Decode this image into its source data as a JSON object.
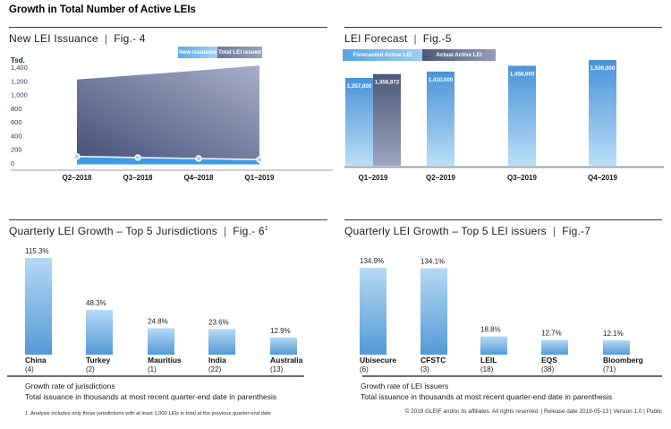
{
  "header": {
    "title": "Growth in Total Number of Active LEIs"
  },
  "ui": {
    "divider": "|"
  },
  "colors": {
    "bright_blue": "#3E9BE6",
    "bar_blue_top": "#4A93D9",
    "bar_blue_bottom": "#B9DDF6",
    "bar_light_top": "#B5D9F4",
    "bar_light_bottom": "#539AD7",
    "dark_navy_top": "#4D5878",
    "dark_navy_bottom": "#9CA5C0",
    "area_dark": "#46517B",
    "area_light": "#A7AEC7"
  },
  "chart_data": [
    {
      "id": "fig4",
      "type": "area",
      "title": "New LEI Issuance",
      "figure": "Fig.- 4",
      "ylabel": "Tsd.",
      "categories": [
        "Q2–2018",
        "Q3–2018",
        "Q4–2018",
        "Q1–2019"
      ],
      "series": [
        {
          "name": "New issuance",
          "values": [
            95,
            80,
            65,
            50
          ]
        },
        {
          "name": "Total LEI issued",
          "values": [
            1220,
            1285,
            1350,
            1425
          ]
        }
      ],
      "yticks": [
        "1,400",
        "1,200",
        "1,000",
        "800",
        "600",
        "400",
        "200",
        "0"
      ],
      "ylim": [
        0,
        1400
      ],
      "legend_position": "top-right"
    },
    {
      "id": "fig5",
      "type": "bar",
      "title": "LEI Forecast",
      "figure": "Fig.-5",
      "categories": [
        "Q1–2019",
        "Q2–2019",
        "Q3–2019",
        "Q4–2019"
      ],
      "series": [
        {
          "name": "Forecasted Active LEI",
          "values": [
            1357000,
            1410000,
            1458000,
            1506000
          ],
          "labels": [
            "1,357,000",
            "1,410,000",
            "1,458,000",
            "1,506,000"
          ]
        },
        {
          "name": "Actual Active LEI",
          "values": [
            1358872,
            null,
            null,
            null
          ],
          "labels": [
            "1,358,872",
            null,
            null,
            null
          ]
        }
      ],
      "legend_position": "top-left"
    },
    {
      "id": "fig6",
      "type": "bar",
      "title": "Quarterly LEI Growth – Top 5 Jurisdictions",
      "figure": "Fig.- 6",
      "figure_superscript": "1",
      "categories": [
        "China",
        "Turkey",
        "Mauritius",
        "India",
        "Australia"
      ],
      "category_subs": [
        "(4)",
        "(2)",
        "(1)",
        "(22)",
        "(13)"
      ],
      "values": [
        115.3,
        48.3,
        24.8,
        23.6,
        12.9
      ],
      "value_labels": [
        "115.3%",
        "48.3%",
        "24.8%",
        "23.6%",
        "12.9%"
      ],
      "captions": [
        "Growth rate of jurisdictions",
        "Total issuance in thousands at most recent quarter-end date in parenthesis"
      ],
      "footnote": "1. Analysis includes only those jurisdictions with at least 1,000 LEIs in total at the previous quarter-end date"
    },
    {
      "id": "fig7",
      "type": "bar",
      "title": "Quarterly LEI Growth – Top 5 LEI issuers",
      "figure": "Fig.-7",
      "categories": [
        "Ubisecure",
        "CFSTC",
        "LEIL",
        "EQS",
        "Bloomberg"
      ],
      "category_subs": [
        "(6)",
        "(3)",
        "(18)",
        "(38)",
        "(71)"
      ],
      "values": [
        134.9,
        134.1,
        18.8,
        12.7,
        12.1
      ],
      "value_labels": [
        "134.9%",
        "134.1%",
        "18.8%",
        "12.7%",
        "12.1%"
      ],
      "captions": [
        "Growth rate of LEI issuers",
        "Total issuance in thousands at most recent quarter-end date in parenthesis"
      ]
    }
  ],
  "footer": {
    "text": "© 2019 GLEIF and/or its affiliates. All rights reserved.  |  Release date 2019-05-13  |  Version 1.0  |  Public"
  }
}
